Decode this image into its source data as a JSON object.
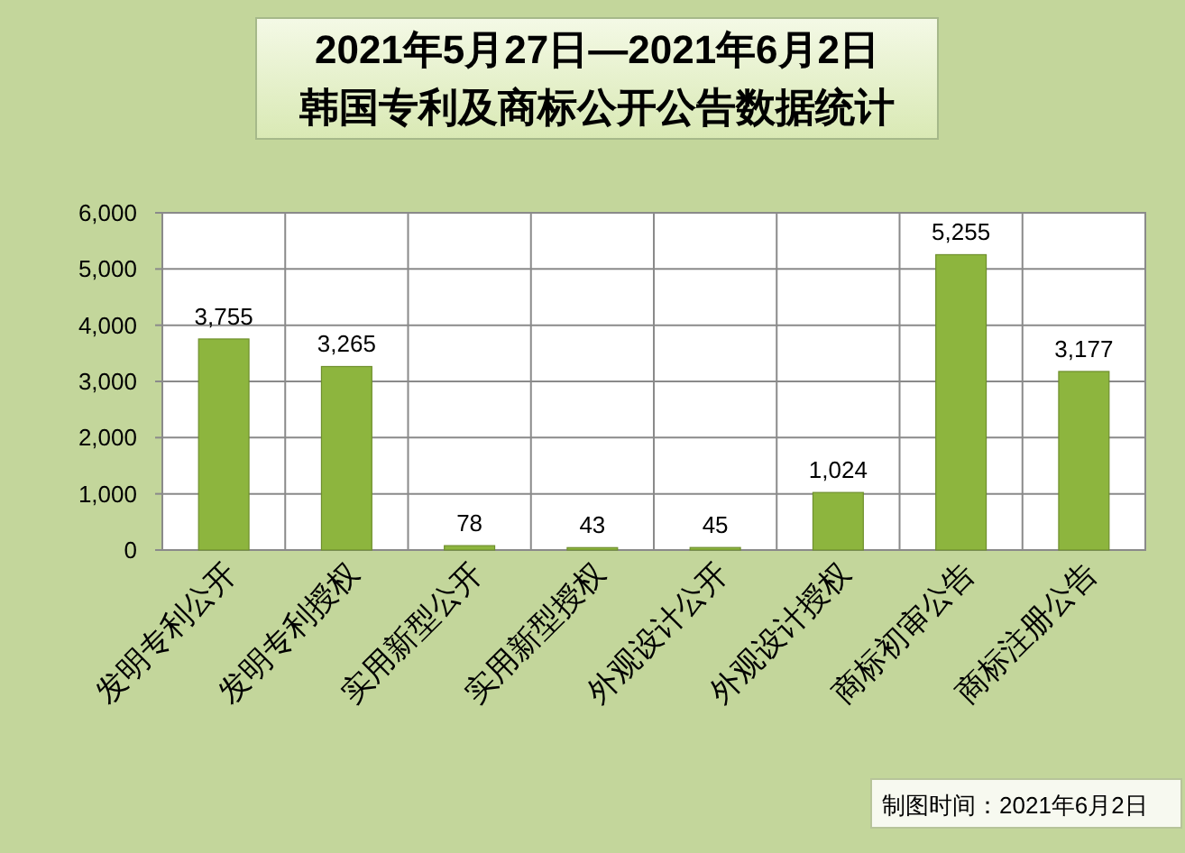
{
  "chart_data": {
    "type": "bar",
    "title": "2021年5月27日—2021年6月2日",
    "subtitle": "韩国专利及商标公开公告数据统计",
    "categories": [
      "发明专利公开",
      "发明专利授权",
      "实用新型公开",
      "实用新型授权",
      "外观设计公开",
      "外观设计授权",
      "商标初审公告",
      "商标注册公告"
    ],
    "values": [
      3755,
      3265,
      78,
      43,
      45,
      1024,
      5255,
      3177
    ],
    "value_labels": [
      "3,755",
      "3,265",
      "78",
      "43",
      "45",
      "1,024",
      "5,255",
      "3,177"
    ],
    "color": "#8db53e",
    "ylim": [
      0,
      6000
    ],
    "yticks": [
      0,
      {
        "value": 1000,
        "label": "1,000"
      },
      {
        "value": 2000,
        "label": "2,000"
      },
      {
        "value": 3000,
        "label": "3,000"
      },
      {
        "value": 4000,
        "label": "4,000"
      },
      {
        "value": 5000,
        "label": "5,000"
      },
      {
        "value": 6000,
        "label": "6,000"
      }
    ],
    "grid": true,
    "annotations": [
      "制图时间：2021年6月2日"
    ]
  }
}
